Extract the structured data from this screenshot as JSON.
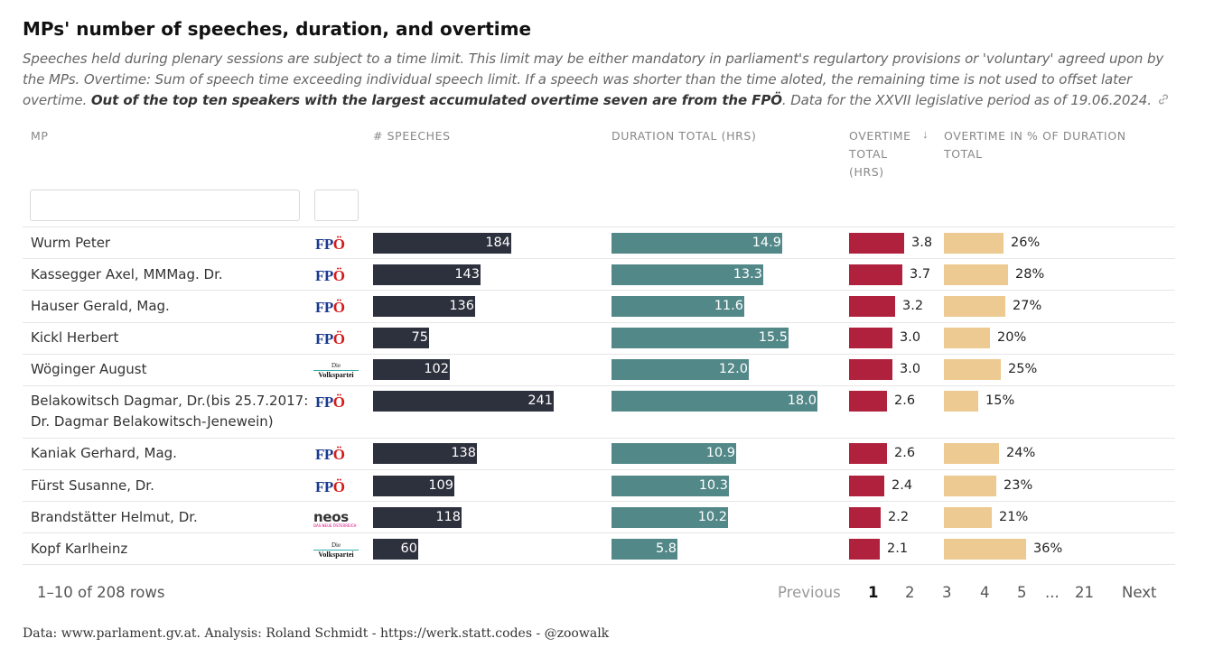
{
  "title": "MPs' number of speeches, duration, and overtime",
  "description": {
    "text": "Speeches held during plenary sessions are subject to a time limit. This limit may be either mandatory in parliament's regulartory provisions or 'voluntary' agreed upon by the MPs. Overtime: Sum of speech time exceeding individual speech limit. If a speech was shorter than the time aloted, the remaining time is not used to offset later overtime. ",
    "bold": "Out of the top ten speakers with the largest accumulated overtime seven are from the FPÖ",
    "tail": ". Data for the XXVII legislative period as of 19.06.2024."
  },
  "columns": {
    "mp": "MP",
    "speeches": "# SPEECHES",
    "duration": "DURATION TOTAL (HRS)",
    "overtime_line1": "OVERTIME",
    "overtime_line2": "TOTAL",
    "overtime_line3": "(HRS)",
    "sort_indicator": "↓",
    "pct_line1": "OVERTIME IN % OF DURATION",
    "pct_line2": "TOTAL"
  },
  "colors": {
    "speeches": "#2d313d",
    "duration": "#538888",
    "overtime": "#b0213d",
    "pct": "#ecca92"
  },
  "party_logos": {
    "fpo": {
      "main": "FP",
      "accent": "Ö"
    },
    "ovp": {
      "small": "Die",
      "main": "Volkspartei"
    },
    "neos": {
      "main": "neos",
      "sub": "DAS NEUE ÖSTERREICH"
    }
  },
  "chart_data": {
    "type": "table",
    "rows": [
      {
        "name": "Wurm Peter",
        "name2": "",
        "party": "fpo",
        "speeches": 184,
        "duration": "14.9",
        "overtime": "3.8",
        "pct": "26%"
      },
      {
        "name": "Kassegger Axel, MMMag. Dr.",
        "name2": "",
        "party": "fpo",
        "speeches": 143,
        "duration": "13.3",
        "overtime": "3.7",
        "pct": "28%"
      },
      {
        "name": "Hauser Gerald, Mag.",
        "name2": "",
        "party": "fpo",
        "speeches": 136,
        "duration": "11.6",
        "overtime": "3.2",
        "pct": "27%"
      },
      {
        "name": "Kickl Herbert",
        "name2": "",
        "party": "fpo",
        "speeches": 75,
        "duration": "15.5",
        "overtime": "3.0",
        "pct": "20%"
      },
      {
        "name": "Wöginger August",
        "name2": "",
        "party": "ovp",
        "speeches": 102,
        "duration": "12.0",
        "overtime": "3.0",
        "pct": "25%"
      },
      {
        "name": "Belakowitsch Dagmar, Dr.(bis 25.7.2017:",
        "name2": "Dr. Dagmar Belakowitsch-Jenewein)",
        "party": "fpo",
        "speeches": 241,
        "duration": "18.0",
        "overtime": "2.6",
        "pct": "15%"
      },
      {
        "name": "Kaniak Gerhard, Mag.",
        "name2": "",
        "party": "fpo",
        "speeches": 138,
        "duration": "10.9",
        "overtime": "2.6",
        "pct": "24%"
      },
      {
        "name": "Fürst Susanne, Dr.",
        "name2": "",
        "party": "fpo",
        "speeches": 109,
        "duration": "10.3",
        "overtime": "2.4",
        "pct": "23%"
      },
      {
        "name": "Brandstätter Helmut, Dr.",
        "name2": "",
        "party": "neos",
        "speeches": 118,
        "duration": "10.2",
        "overtime": "2.2",
        "pct": "21%"
      },
      {
        "name": "Kopf Karlheinz",
        "name2": "",
        "party": "ovp",
        "speeches": 60,
        "duration": "5.8",
        "overtime": "2.1",
        "pct": "36%"
      }
    ],
    "scales": {
      "speeches_max": 241,
      "duration_max": 18.0,
      "overtime_max": 3.8,
      "pct_max": 36
    }
  },
  "pagination": {
    "summary": "1–10 of 208 rows",
    "previous": "Previous",
    "pages": [
      "1",
      "2",
      "3",
      "4",
      "5",
      "...",
      "21"
    ],
    "current": "1",
    "next": "Next"
  },
  "source": "Data: www.parlament.gv.at. Analysis: Roland Schmidt - https://werk.statt.codes - @zoowalk"
}
